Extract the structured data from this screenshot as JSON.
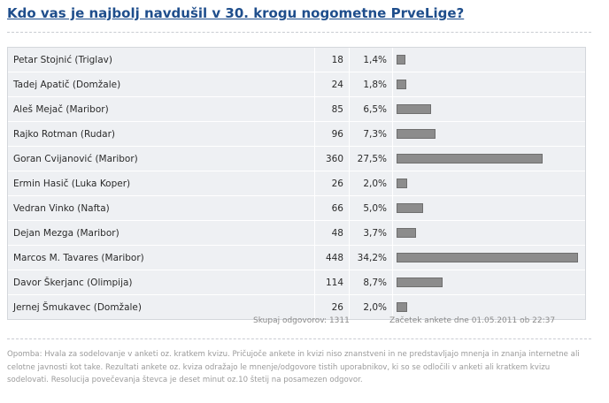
{
  "poll": {
    "title": "Kdo vas je najbolj navdušil v 30. krogu nogometne PrveLige?",
    "rows": [
      {
        "name": "Petar Stojnić (Triglav)",
        "votes": "18",
        "percent": "1,4%",
        "share": 1.4
      },
      {
        "name": "Tadej Apatič (Domžale)",
        "votes": "24",
        "percent": "1,8%",
        "share": 1.8
      },
      {
        "name": "Aleš Mejač (Maribor)",
        "votes": "85",
        "percent": "6,5%",
        "share": 6.5
      },
      {
        "name": "Rajko Rotman (Rudar)",
        "votes": "96",
        "percent": "7,3%",
        "share": 7.3
      },
      {
        "name": "Goran Cvijanović (Maribor)",
        "votes": "360",
        "percent": "27,5%",
        "share": 27.5
      },
      {
        "name": "Ermin Hasič (Luka Koper)",
        "votes": "26",
        "percent": "2,0%",
        "share": 2.0
      },
      {
        "name": "Vedran Vinko (Nafta)",
        "votes": "66",
        "percent": "5,0%",
        "share": 5.0
      },
      {
        "name": "Dejan Mezga (Maribor)",
        "votes": "48",
        "percent": "3,7%",
        "share": 3.7
      },
      {
        "name": "Marcos M. Tavares (Maribor)",
        "votes": "448",
        "percent": "34,2%",
        "share": 34.2
      },
      {
        "name": "Davor Škerjanc (Olimpija)",
        "votes": "114",
        "percent": "8,7%",
        "share": 8.7
      },
      {
        "name": "Jernej Šmukavec (Domžale)",
        "votes": "26",
        "percent": "2,0%",
        "share": 2.0
      }
    ],
    "total_text": "Skupaj odgovorov: 1311",
    "start_text": "Začetek ankete dne 01.05.2011 ob 22:37",
    "note": "Opomba: Hvala za sodelovanje v anketi oz. kratkem kvizu. Pričujoče ankete in kvizi niso znanstveni in ne predstavljajo mnenja in znanja internetne ali celotne javnosti kot take. Rezultati ankete oz. kviza odražajo le mnenje/odgovore tistih uporabnikov, ki so se odločili v anketi ali kratkem kvizu sodelovati. Resolucija povečevanja števca je deset minut oz.10 štetij na posamezen odgovor.",
    "bar_color": "#8c8c8c",
    "row_bg": "#eef0f3",
    "title_color": "#1f4e8c"
  }
}
